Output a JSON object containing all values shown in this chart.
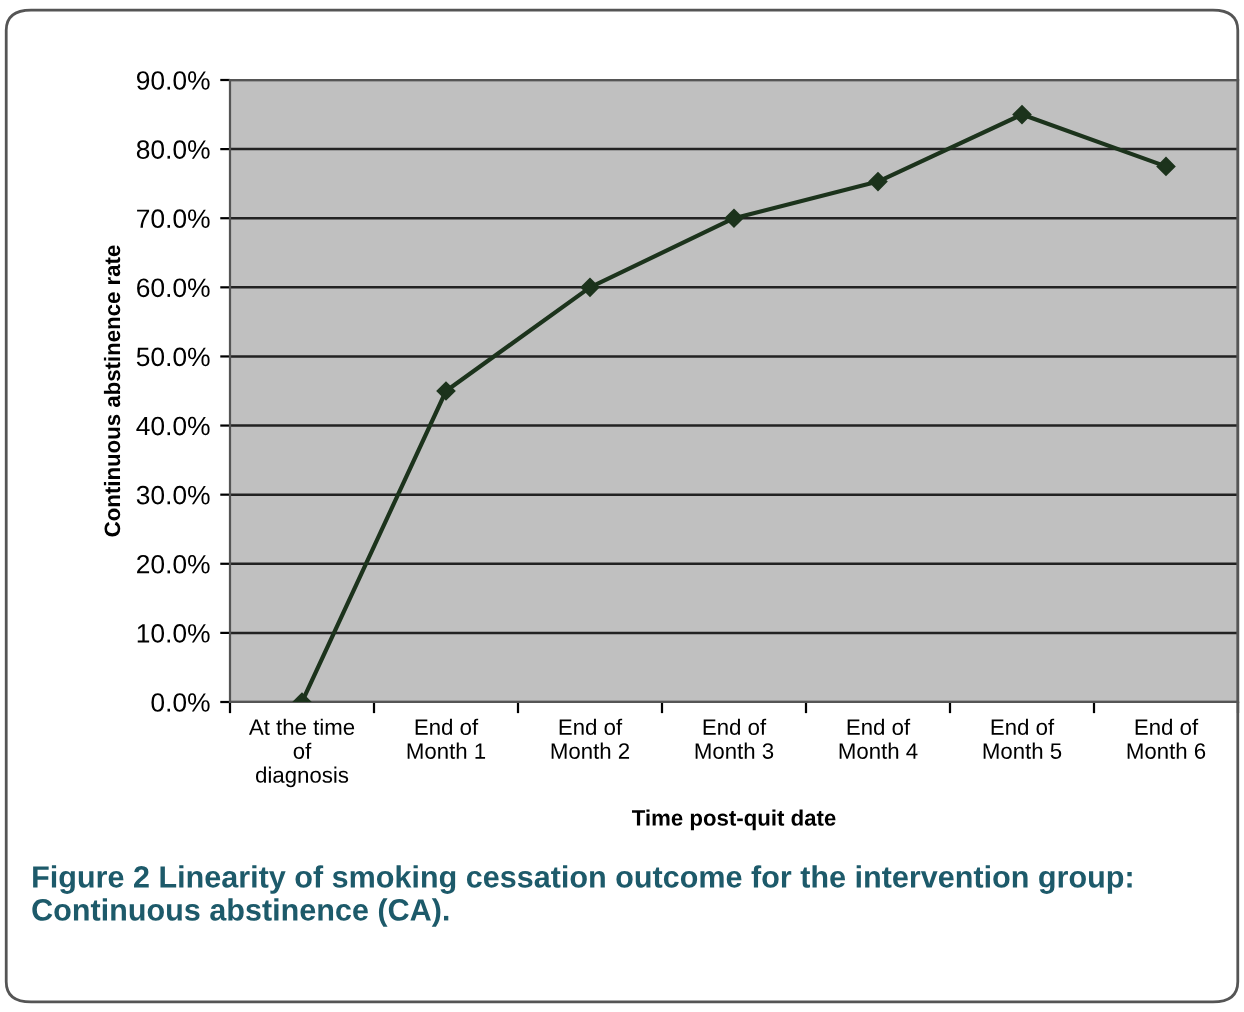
{
  "chart_data": {
    "type": "line",
    "categories": [
      "At the time of diagnosis",
      "End of Month 1",
      "End of Month 2",
      "End of Month 3",
      "End of Month 4",
      "End of Month 5",
      "End of Month 6"
    ],
    "series": [
      {
        "color": "#1c331c",
        "values": [
          0,
          45,
          60,
          70,
          75.3,
          85,
          77.5
        ]
      }
    ],
    "xlabel": "Time post-quit date",
    "ylabel": "Continuous abstinence rate",
    "ylim": [
      0,
      90
    ],
    "yticks": [
      {
        "value": 0,
        "label": "0.0%"
      },
      {
        "value": 10,
        "label": "10.0%"
      },
      {
        "value": 20,
        "label": "20.0%"
      },
      {
        "value": 30,
        "label": "30.0%"
      },
      {
        "value": 40,
        "label": "40.0%"
      },
      {
        "value": 50,
        "label": "50.0%"
      },
      {
        "value": 60,
        "label": "60.0%"
      },
      {
        "value": 70,
        "label": "70.0%"
      },
      {
        "value": 80,
        "label": "80.0%"
      },
      {
        "value": 90,
        "label": "90.0%"
      }
    ],
    "grid": "y",
    "legend": false,
    "marker": "diamond",
    "line_style": "solid",
    "annotations": [
      "Figure 2 Linearity of smoking cessation outcome for the intervention group: Continuous abstinence (CA)."
    ]
  }
}
